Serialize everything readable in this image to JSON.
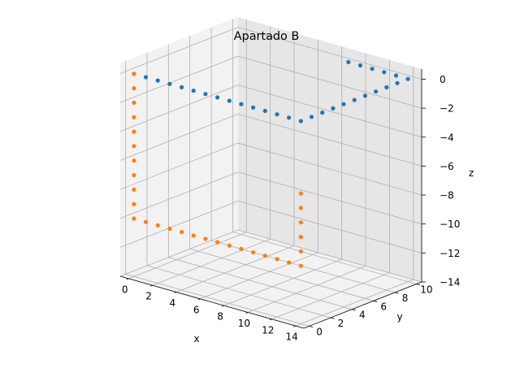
{
  "chart_data": {
    "type": "scatter",
    "title": "Apartado B",
    "xlabel": "x",
    "ylabel": "y",
    "zlabel": "z",
    "xlim": [
      -0.7,
      14.7
    ],
    "ylim": [
      -0.5,
      10.5
    ],
    "zlim": [
      -14.0,
      0.7
    ],
    "xticks": [
      0,
      2,
      4,
      6,
      8,
      10,
      12,
      14
    ],
    "yticks": [
      0,
      2,
      4,
      6,
      8,
      10
    ],
    "zticks": [
      0,
      -2,
      -4,
      -6,
      -8,
      -10,
      -12,
      -14
    ],
    "grid": true,
    "series": [
      {
        "color": "#1f77b4",
        "points": [
          [
            0,
            0,
            0
          ],
          [
            1,
            0,
            0
          ],
          [
            2,
            0,
            0
          ],
          [
            3,
            0,
            0
          ],
          [
            4,
            0,
            0
          ],
          [
            5,
            0,
            0
          ],
          [
            6,
            0,
            0
          ],
          [
            7,
            0,
            0
          ],
          [
            8,
            0,
            0
          ],
          [
            9,
            0,
            0
          ],
          [
            10,
            0,
            0
          ],
          [
            11,
            0,
            0
          ],
          [
            12,
            0,
            0
          ],
          [
            13,
            0,
            0
          ],
          [
            14,
            0,
            0
          ],
          [
            14,
            1,
            0
          ],
          [
            14,
            2,
            0
          ],
          [
            14,
            3,
            0
          ],
          [
            14,
            4,
            0
          ],
          [
            14,
            5,
            0
          ],
          [
            14,
            6,
            0
          ],
          [
            14,
            7,
            0
          ],
          [
            14,
            8,
            0
          ],
          [
            14,
            9,
            0
          ],
          [
            14,
            10,
            0
          ],
          [
            13,
            10,
            0
          ],
          [
            12,
            10,
            0
          ],
          [
            11,
            10,
            0
          ],
          [
            10,
            10,
            0
          ],
          [
            9,
            10,
            0
          ]
        ]
      },
      {
        "color": "#ff7f0e",
        "points": [
          [
            0,
            0,
            0
          ],
          [
            0,
            0,
            -1
          ],
          [
            0,
            0,
            -2
          ],
          [
            0,
            0,
            -3
          ],
          [
            0,
            0,
            -4
          ],
          [
            0,
            0,
            -5
          ],
          [
            0,
            0,
            -6
          ],
          [
            0,
            0,
            -7
          ],
          [
            0,
            0,
            -8
          ],
          [
            0,
            0,
            -9
          ],
          [
            0,
            0,
            -10
          ],
          [
            1,
            0,
            -10
          ],
          [
            2,
            0,
            -10
          ],
          [
            3,
            0,
            -10
          ],
          [
            4,
            0,
            -10
          ],
          [
            5,
            0,
            -10
          ],
          [
            6,
            0,
            -10
          ],
          [
            7,
            0,
            -10
          ],
          [
            8,
            0,
            -10
          ],
          [
            9,
            0,
            -10
          ],
          [
            10,
            0,
            -10
          ],
          [
            11,
            0,
            -10
          ],
          [
            12,
            0,
            -10
          ],
          [
            13,
            0,
            -10
          ],
          [
            14,
            0,
            -10
          ],
          [
            14,
            0,
            -9
          ],
          [
            14,
            0,
            -8
          ],
          [
            14,
            0,
            -7
          ],
          [
            14,
            0,
            -6
          ],
          [
            14,
            0,
            -5
          ]
        ]
      }
    ]
  }
}
